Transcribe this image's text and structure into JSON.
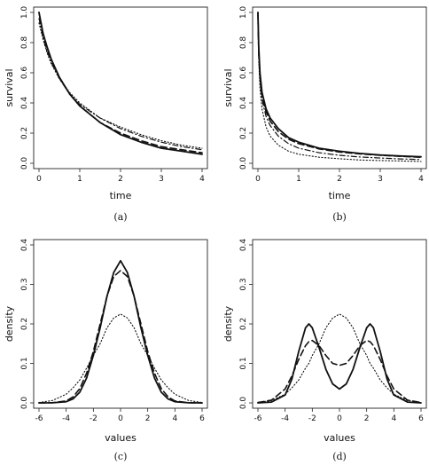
{
  "chart_data": [
    {
      "type": "line",
      "caption": "(a)",
      "xlabel": "time",
      "ylabel": "survival",
      "xlim": [
        0,
        4
      ],
      "ylim": [
        0,
        1
      ],
      "xticks": [
        "0",
        "1",
        "2",
        "3",
        "4"
      ],
      "yticks": [
        "0.0",
        "0.2",
        "0.4",
        "0.6",
        "0.8",
        "1.0"
      ],
      "x": [
        0,
        0.1,
        0.2,
        0.3,
        0.5,
        0.75,
        1,
        1.5,
        2,
        2.5,
        3,
        3.5,
        4
      ],
      "series": [
        {
          "style": "solid",
          "values": [
            1.0,
            0.86,
            0.77,
            0.69,
            0.57,
            0.46,
            0.38,
            0.27,
            0.19,
            0.14,
            0.1,
            0.08,
            0.06
          ]
        },
        {
          "style": "dashed",
          "values": [
            1.0,
            0.86,
            0.76,
            0.69,
            0.57,
            0.46,
            0.38,
            0.27,
            0.2,
            0.15,
            0.11,
            0.09,
            0.07
          ]
        },
        {
          "style": "dotted",
          "values": [
            0.93,
            0.82,
            0.73,
            0.66,
            0.56,
            0.47,
            0.4,
            0.3,
            0.24,
            0.19,
            0.15,
            0.12,
            0.1
          ]
        },
        {
          "style": "dotdash",
          "values": [
            0.96,
            0.83,
            0.74,
            0.67,
            0.56,
            0.46,
            0.39,
            0.3,
            0.23,
            0.18,
            0.14,
            0.11,
            0.09
          ]
        }
      ]
    },
    {
      "type": "line",
      "caption": "(b)",
      "xlabel": "time",
      "ylabel": "survival",
      "xlim": [
        0,
        4
      ],
      "ylim": [
        0,
        1
      ],
      "xticks": [
        "0",
        "1",
        "2",
        "3",
        "4"
      ],
      "yticks": [
        "0.0",
        "0.2",
        "0.4",
        "0.6",
        "0.8",
        "1.0"
      ],
      "x": [
        0,
        0.02,
        0.05,
        0.1,
        0.2,
        0.3,
        0.5,
        0.75,
        1,
        1.5,
        2,
        2.5,
        3,
        3.5,
        4
      ],
      "series": [
        {
          "style": "solid",
          "values": [
            1.0,
            0.77,
            0.6,
            0.47,
            0.36,
            0.3,
            0.23,
            0.17,
            0.14,
            0.1,
            0.08,
            0.065,
            0.055,
            0.048,
            0.043
          ]
        },
        {
          "style": "dashed",
          "values": [
            1.0,
            0.73,
            0.57,
            0.45,
            0.34,
            0.28,
            0.21,
            0.16,
            0.13,
            0.095,
            0.075,
            0.062,
            0.053,
            0.046,
            0.04
          ]
        },
        {
          "style": "dotted",
          "values": [
            0.93,
            0.68,
            0.5,
            0.36,
            0.24,
            0.18,
            0.12,
            0.08,
            0.06,
            0.04,
            0.03,
            0.022,
            0.018,
            0.015,
            0.012
          ]
        },
        {
          "style": "dotdash",
          "values": [
            0.96,
            0.72,
            0.55,
            0.42,
            0.31,
            0.25,
            0.18,
            0.13,
            0.1,
            0.07,
            0.053,
            0.042,
            0.035,
            0.029,
            0.025
          ]
        }
      ]
    },
    {
      "type": "line",
      "caption": "(c)",
      "xlabel": "values",
      "ylabel": "density",
      "xlim": [
        -6,
        6
      ],
      "ylim": [
        0,
        0.4
      ],
      "xticks": [
        "-6",
        "-4",
        "-2",
        "0",
        "2",
        "4",
        "6"
      ],
      "yticks": [
        "0.0",
        "0.1",
        "0.2",
        "0.3",
        "0.4"
      ],
      "x": [
        -6,
        -5,
        -4,
        -3.5,
        -3,
        -2.5,
        -2,
        -1.5,
        -1,
        -0.5,
        0,
        0.5,
        1,
        1.5,
        2,
        2.5,
        3,
        3.5,
        4,
        5,
        6
      ],
      "series": [
        {
          "style": "solid",
          "values": [
            0,
            0.0002,
            0.003,
            0.01,
            0.027,
            0.063,
            0.12,
            0.19,
            0.27,
            0.33,
            0.36,
            0.33,
            0.27,
            0.19,
            0.12,
            0.063,
            0.027,
            0.01,
            0.003,
            0.0002,
            0
          ]
        },
        {
          "style": "dashed",
          "values": [
            0,
            0.0005,
            0.005,
            0.015,
            0.036,
            0.075,
            0.13,
            0.2,
            0.27,
            0.32,
            0.335,
            0.32,
            0.27,
            0.2,
            0.13,
            0.075,
            0.036,
            0.015,
            0.005,
            0.0005,
            0
          ]
        },
        {
          "style": "dotted",
          "values": [
            0.001,
            0.006,
            0.022,
            0.038,
            0.058,
            0.088,
            0.12,
            0.15,
            0.19,
            0.215,
            0.225,
            0.215,
            0.19,
            0.15,
            0.12,
            0.088,
            0.058,
            0.038,
            0.022,
            0.006,
            0.001
          ]
        }
      ]
    },
    {
      "type": "line",
      "caption": "(d)",
      "xlabel": "values",
      "ylabel": "density",
      "xlim": [
        -6,
        6
      ],
      "ylim": [
        0,
        0.4
      ],
      "xticks": [
        "-6",
        "-4",
        "-2",
        "0",
        "2",
        "4",
        "6"
      ],
      "yticks": [
        "0.0",
        "0.1",
        "0.2",
        "0.3",
        "0.4"
      ],
      "x": [
        -6,
        -5,
        -4,
        -3.5,
        -3,
        -2.5,
        -2.25,
        -2,
        -1.5,
        -1,
        -0.5,
        0,
        0.5,
        1,
        1.5,
        2,
        2.25,
        2.5,
        3,
        3.5,
        4,
        5,
        6
      ],
      "series": [
        {
          "style": "solid",
          "values": [
            0,
            0.002,
            0.02,
            0.06,
            0.13,
            0.19,
            0.2,
            0.19,
            0.14,
            0.085,
            0.048,
            0.035,
            0.048,
            0.085,
            0.14,
            0.19,
            0.2,
            0.19,
            0.13,
            0.06,
            0.02,
            0.002,
            0
          ]
        },
        {
          "style": "dashed",
          "values": [
            0.001,
            0.007,
            0.035,
            0.068,
            0.11,
            0.145,
            0.155,
            0.158,
            0.145,
            0.12,
            0.1,
            0.095,
            0.1,
            0.12,
            0.145,
            0.158,
            0.155,
            0.145,
            0.11,
            0.068,
            0.035,
            0.007,
            0.001
          ]
        },
        {
          "style": "dotted",
          "values": [
            0.001,
            0.006,
            0.022,
            0.038,
            0.058,
            0.088,
            0.1,
            0.12,
            0.15,
            0.19,
            0.215,
            0.225,
            0.215,
            0.19,
            0.15,
            0.12,
            0.1,
            0.088,
            0.058,
            0.038,
            0.022,
            0.006,
            0.001
          ]
        }
      ]
    }
  ]
}
